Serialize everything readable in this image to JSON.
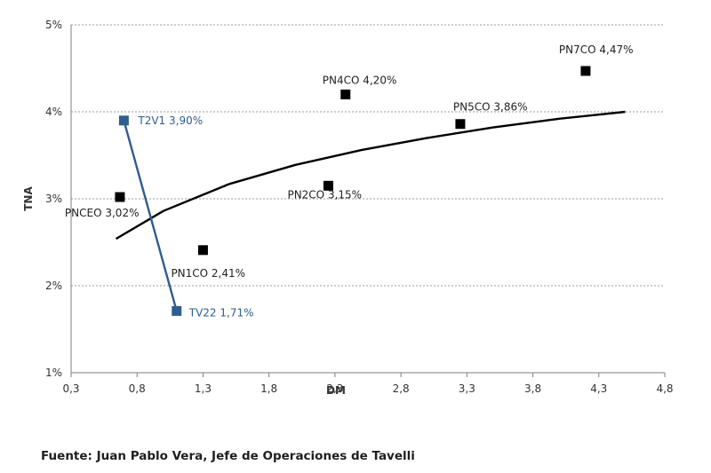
{
  "chart_data": {
    "type": "scatter",
    "xlabel": "DM",
    "ylabel": "TNA",
    "xlim": [
      0.3,
      4.8
    ],
    "ylim": [
      1,
      5
    ],
    "x_ticks": [
      "0,3",
      "0,8",
      "1,3",
      "1,8",
      "2,3",
      "2,8",
      "3,3",
      "3,8",
      "4,3",
      "4,8"
    ],
    "y_ticks": [
      "1%",
      "2%",
      "3%",
      "4%",
      "5%"
    ],
    "grid": "horizontal dotted",
    "series": [
      {
        "color": "#000000",
        "marker": "square",
        "points": [
          {
            "x": 0.67,
            "y": 3.02,
            "label": "PNCEO 3,02%"
          },
          {
            "x": 1.3,
            "y": 2.41,
            "label": "PN1CO 2,41%"
          },
          {
            "x": 2.25,
            "y": 3.15,
            "label": "PN2CO 3,15%"
          },
          {
            "x": 2.38,
            "y": 4.2,
            "label": "PN4CO 4,20%"
          },
          {
            "x": 3.25,
            "y": 3.86,
            "label": "PN5CO 3,86%"
          },
          {
            "x": 4.2,
            "y": 4.47,
            "label": "PN7CO 4,47%"
          }
        ]
      },
      {
        "color": "#2f5d8e",
        "marker": "square",
        "connected": true,
        "points": [
          {
            "x": 0.7,
            "y": 3.9,
            "label": "T2V1 3,90%"
          },
          {
            "x": 1.1,
            "y": 1.71,
            "label": "TV22 1,71%"
          }
        ]
      }
    ],
    "trendline": {
      "type": "logarithmic",
      "color": "#000000",
      "x": [
        0.64,
        1.0,
        1.5,
        2.0,
        2.5,
        3.0,
        3.5,
        4.0,
        4.5
      ],
      "y": [
        2.54,
        2.86,
        3.17,
        3.39,
        3.56,
        3.7,
        3.82,
        3.92,
        4.0
      ]
    }
  },
  "source_note": "Fuente: Juan Pablo Vera, Jefe de Operaciones de Tavelli"
}
